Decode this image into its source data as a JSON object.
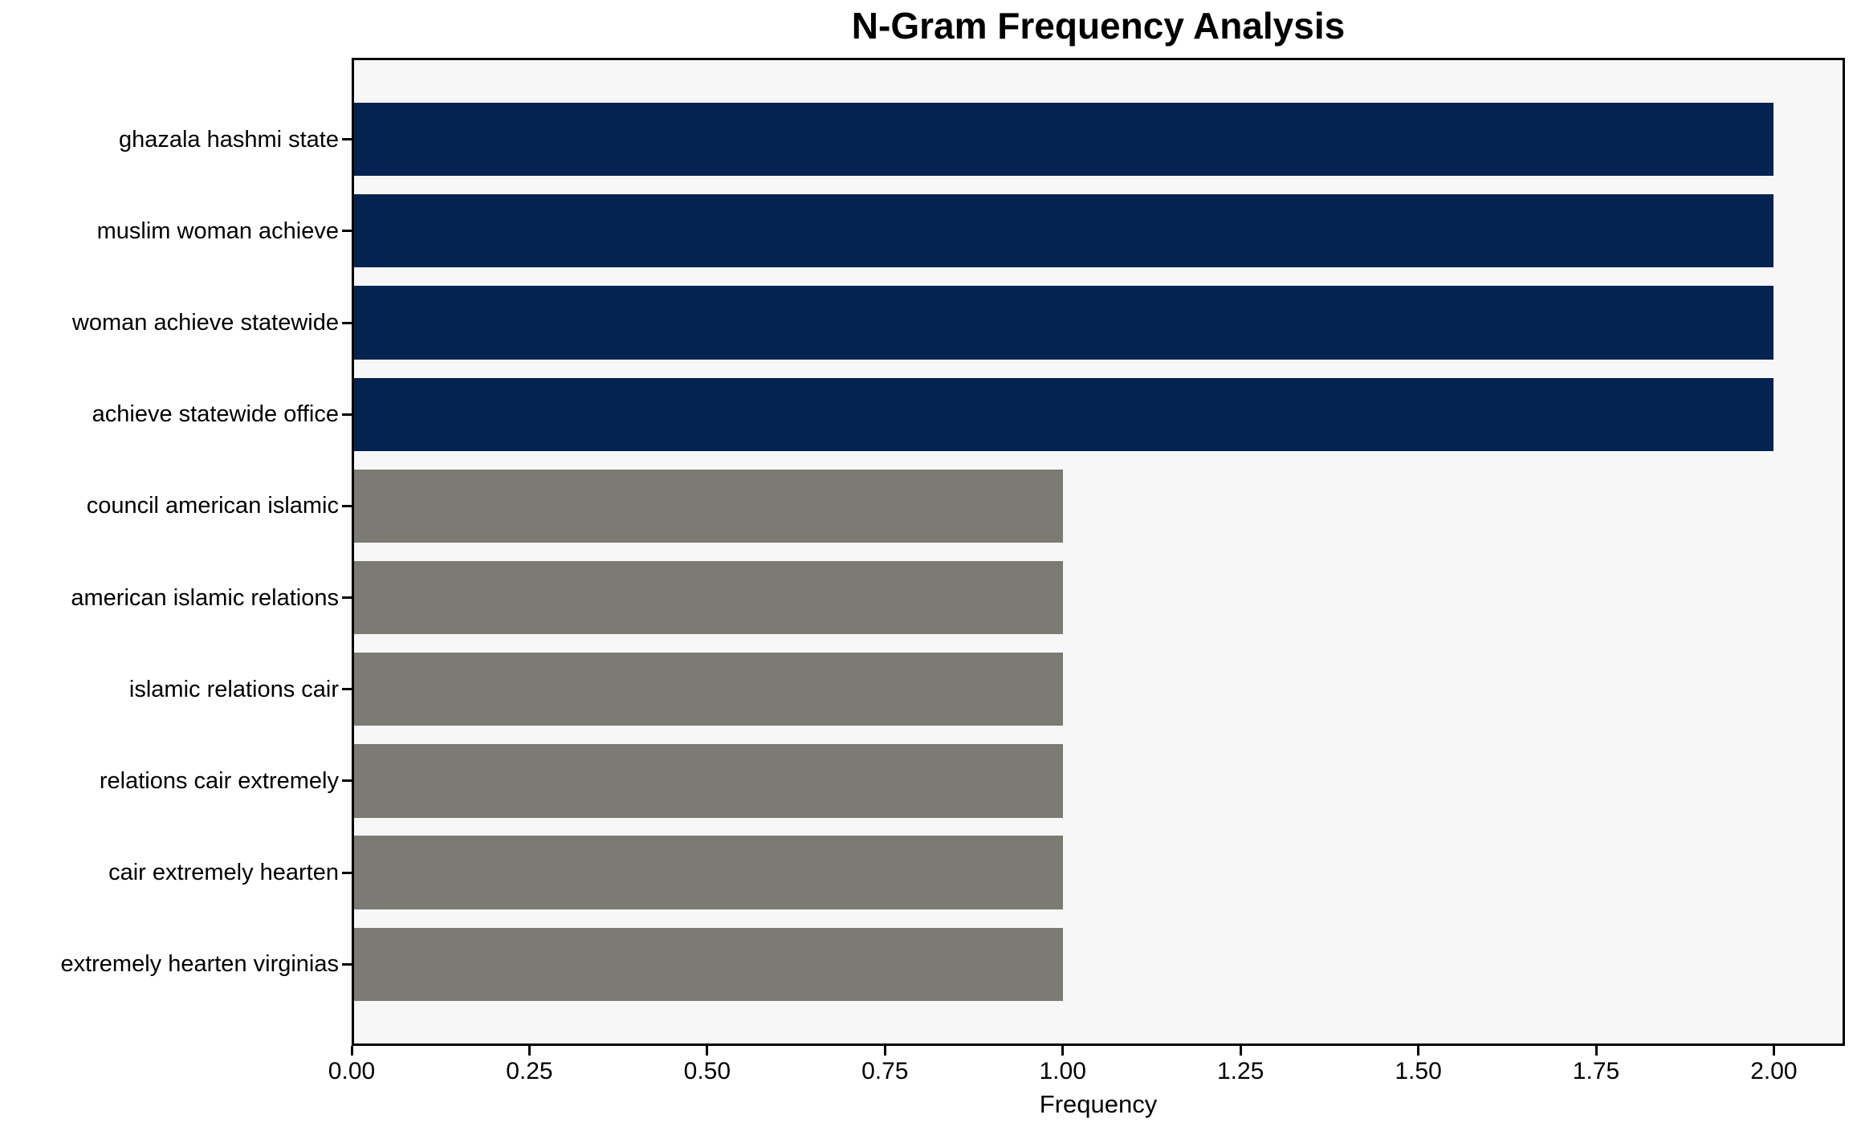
{
  "chart_data": {
    "type": "bar",
    "orientation": "horizontal",
    "title": "N-Gram Frequency Analysis",
    "xlabel": "Frequency",
    "ylabel": "",
    "categories": [
      "ghazala hashmi state",
      "muslim woman achieve",
      "woman achieve statewide",
      "achieve statewide office",
      "council american islamic",
      "american islamic relations",
      "islamic relations cair",
      "relations cair extremely",
      "cair extremely hearten",
      "extremely hearten virginias"
    ],
    "values": [
      2,
      2,
      2,
      2,
      1,
      1,
      1,
      1,
      1,
      1
    ],
    "bar_colors": [
      "#052350",
      "#052350",
      "#052350",
      "#052350",
      "#7B7A73",
      "#7B7A73",
      "#7B7A73",
      "#7B7A73",
      "#7B7A73",
      "#7B7A73"
    ],
    "xlim": [
      0,
      2.1
    ],
    "xtick_values": [
      0,
      0.25,
      0.5,
      0.75,
      1.0,
      1.25,
      1.5,
      1.75,
      2.0
    ],
    "xtick_labels": [
      "0.00",
      "0.25",
      "0.50",
      "0.75",
      "1.00",
      "1.25",
      "1.50",
      "1.75",
      "2.00"
    ],
    "bar_height_ratio": 0.8,
    "grid": false,
    "legend": false,
    "plot_background": "#F7F7F8",
    "figure_background": "#FFFFFF",
    "spine_color": "#000000",
    "text_color": "#000000"
  }
}
